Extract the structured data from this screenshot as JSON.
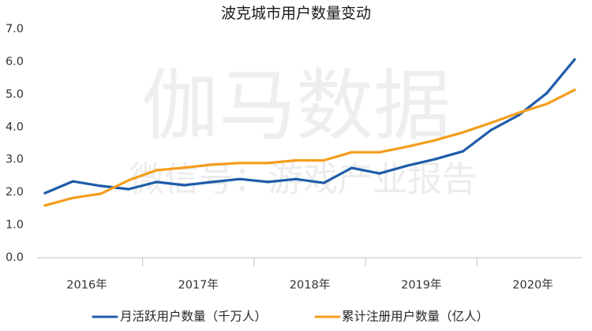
{
  "chart_data": {
    "type": "line",
    "title": "波克城市用户数量变动",
    "x_groups": [
      "2016年",
      "2017年",
      "2018年",
      "2019年",
      "2020年"
    ],
    "ylim": [
      0,
      7
    ],
    "yticks": [
      "0.0",
      "1.0",
      "2.0",
      "3.0",
      "4.0",
      "5.0",
      "6.0",
      "7.0"
    ],
    "grid": false,
    "legend": "bottom",
    "series": [
      {
        "name": "月活跃用户数量（千万人）",
        "color": "#1f5ca9",
        "values": [
          [
            1.98,
            2.34,
            2.2,
            2.1
          ],
          [
            2.32,
            2.22,
            2.32,
            2.41
          ],
          [
            2.32,
            2.41,
            2.29,
            2.75
          ],
          [
            2.58,
            2.82,
            3.02,
            3.26
          ],
          [
            3.91,
            4.37,
            5.04,
            6.07
          ]
        ]
      },
      {
        "name": "累计注册用户数量（亿人）",
        "color": "#f59d1c",
        "values": [
          [
            1.6,
            1.83,
            1.96,
            2.37
          ],
          [
            2.68,
            2.76,
            2.85,
            2.9
          ],
          [
            2.9,
            2.98,
            2.98,
            3.23
          ],
          [
            3.23,
            3.4,
            3.6,
            3.84
          ],
          [
            4.13,
            4.44,
            4.71,
            5.14
          ]
        ]
      }
    ]
  },
  "watermark": {
    "main": "伽马数据",
    "sub": "微信号：游戏产业报告"
  }
}
